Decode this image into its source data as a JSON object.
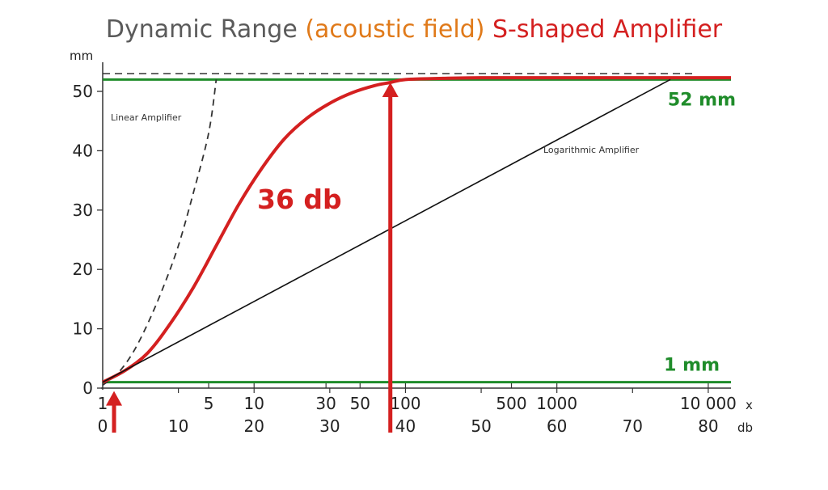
{
  "chart_data": {
    "type": "line",
    "title_parts": [
      {
        "text": "Dynamic Range ",
        "color": "#5a5a5a"
      },
      {
        "text": "(acoustic field) ",
        "color": "#e07a1a"
      },
      {
        "text": "S-shaped Amplifier",
        "color": "#d42020"
      }
    ],
    "ylabel": "mm",
    "ylim": [
      0,
      53
    ],
    "yticks": [
      0,
      10,
      20,
      30,
      40,
      50
    ],
    "xlim_db": [
      0,
      83
    ],
    "x_unit_labels": [
      "x",
      "db"
    ],
    "x_factor_ticks": [
      {
        "label": "1",
        "db": 0
      },
      {
        "label": "5",
        "db": 14
      },
      {
        "label": "10",
        "db": 20
      },
      {
        "label": "30",
        "db": 29.5
      },
      {
        "label": "50",
        "db": 34
      },
      {
        "label": "100",
        "db": 40
      },
      {
        "label": "500",
        "db": 54
      },
      {
        "label": "1000",
        "db": 60
      },
      {
        "label": "10 000",
        "db": 80
      }
    ],
    "x_db_ticks": [
      0,
      10,
      20,
      30,
      40,
      50,
      60,
      70,
      80
    ],
    "series": [
      {
        "key": "linear",
        "color": "#333333",
        "style": "dashed",
        "x": [
          0,
          2,
          4,
          6,
          8,
          10,
          12,
          14,
          15
        ],
        "y": [
          0.5,
          2.5,
          6,
          11,
          17,
          24,
          33,
          43,
          52
        ]
      },
      {
        "key": "s_shaped",
        "color": "#d42020",
        "style": "solid",
        "x": [
          0,
          3,
          6,
          9,
          12,
          15,
          18,
          21,
          24,
          27,
          30,
          33,
          36,
          38,
          40,
          45,
          50,
          60,
          70,
          83
        ],
        "y": [
          1,
          3,
          6,
          11,
          17,
          24,
          31,
          37,
          42,
          45.5,
          48,
          49.8,
          51,
          51.5,
          52,
          52.2,
          52.3,
          52.3,
          52.3,
          52.3
        ]
      },
      {
        "key": "logarithmic",
        "color": "#111111",
        "style": "solid",
        "x": [
          0,
          75
        ],
        "y": [
          1,
          52
        ]
      }
    ],
    "reference_lines": [
      {
        "key": "max",
        "y": 52,
        "color": "#1f8c2a",
        "style": "solid",
        "label": "52 mm"
      },
      {
        "key": "min",
        "y": 1,
        "color": "#1f8c2a",
        "style": "solid",
        "label": "1 mm"
      },
      {
        "key": "dashed_top",
        "y": 53,
        "color": "#333333",
        "style": "dashed"
      }
    ],
    "annotations": {
      "linear": "Linear Amplifier",
      "logarithmic": "Logarithmic Amplifier",
      "range": "36 db",
      "range_color": "#d42020",
      "green_color": "#1f8c2a"
    },
    "arrows": [
      {
        "x_db": 1.5,
        "y_from": -7.5,
        "y_to": -0.5,
        "color": "#d42020"
      },
      {
        "x_db": 38,
        "y_from": -7.5,
        "y_to": 51.5,
        "color": "#d42020"
      }
    ]
  }
}
